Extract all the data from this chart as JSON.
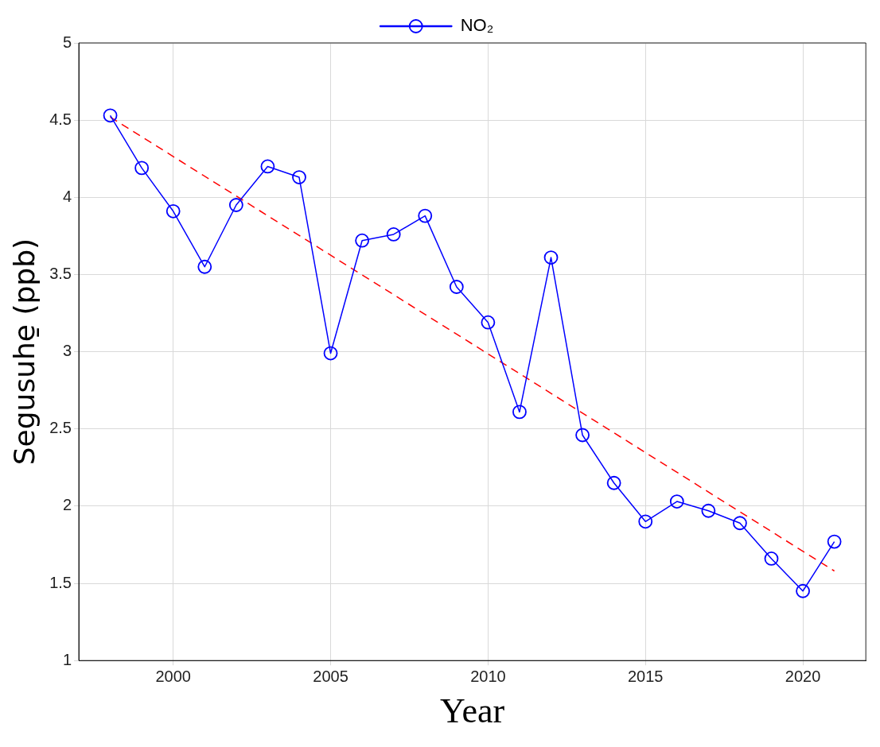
{
  "chart_data": {
    "type": "line",
    "xlabel": "Year",
    "ylabel": "Segusuhe̱ (ppb)",
    "x": [
      1998,
      1999,
      2000,
      2001,
      2002,
      2003,
      2004,
      2005,
      2006,
      2007,
      2008,
      2009,
      2010,
      2011,
      2012,
      2013,
      2014,
      2015,
      2016,
      2017,
      2018,
      2019,
      2020,
      2021
    ],
    "series": [
      {
        "name": "NO₂",
        "color": "#0000ff",
        "values": [
          4.53,
          4.19,
          3.91,
          3.55,
          3.95,
          4.2,
          4.13,
          2.99,
          3.72,
          3.76,
          3.88,
          3.42,
          3.19,
          2.61,
          3.61,
          2.46,
          2.15,
          1.9,
          2.03,
          1.97,
          1.89,
          1.66,
          1.45,
          1.77
        ],
        "marker": "circle",
        "line_style": "solid"
      },
      {
        "type": "line",
        "color": "#ff0000",
        "x": [
          1998,
          2021
        ],
        "values": [
          4.52,
          1.58
        ],
        "marker": "none",
        "line_style": "dashed"
      }
    ],
    "xlim": [
      1997,
      2022
    ],
    "xticks": [
      2000,
      2005,
      2010,
      2015,
      2020
    ],
    "ylim": [
      1,
      5
    ],
    "yticks": [
      1,
      1.5,
      2,
      2.5,
      3,
      3.5,
      4,
      4.5,
      5
    ],
    "grid": true,
    "legend": "top"
  }
}
